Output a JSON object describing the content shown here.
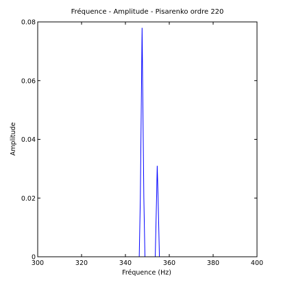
{
  "chart_data": {
    "type": "line",
    "title": "Fréquence - Amplitude - Pisarenko ordre 220",
    "xlabel": "Fréquence (Hz)",
    "ylabel": "Amplitude",
    "xlim": [
      300,
      400
    ],
    "ylim": [
      0,
      0.08
    ],
    "x_ticks": [
      "300",
      "320",
      "340",
      "360",
      "380",
      "400"
    ],
    "y_ticks": [
      "0",
      "0.02",
      "0.04",
      "0.06",
      "0.08"
    ],
    "grid": false,
    "legend": "none",
    "series": [
      {
        "color": "#0000ff",
        "x": [
          300,
          346.3,
          346.8,
          347.6,
          348.4,
          348.9,
          353.6,
          354.2,
          354.5,
          354.9,
          355.5,
          400
        ],
        "y": [
          0,
          0,
          0.02,
          0.078,
          0.02,
          0,
          0,
          0.02,
          0.031,
          0.02,
          0,
          0
        ]
      }
    ]
  }
}
